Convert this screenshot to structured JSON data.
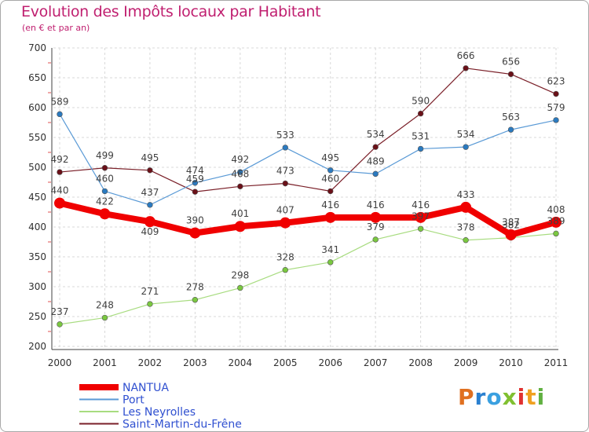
{
  "chart_data": {
    "type": "line",
    "title": "Evolution des Impôts locaux par Habitant",
    "subtitle": "(en € et par an)",
    "categories": [
      "2000",
      "2001",
      "2002",
      "2003",
      "2004",
      "2005",
      "2006",
      "2007",
      "2008",
      "2009",
      "2010",
      "2011"
    ],
    "ylim": [
      200,
      700
    ],
    "yticks": [
      200,
      250,
      300,
      350,
      400,
      450,
      500,
      550,
      600,
      650,
      700
    ],
    "grid": true,
    "legend_position": "bottom-left",
    "series": [
      {
        "name": "Saint-Martin-du-Frêne",
        "color": "#7a1f28",
        "marker": "#6a1018",
        "width": 1.2,
        "values": [
          492,
          499,
          495,
          459,
          468,
          473,
          460,
          534,
          590,
          666,
          656,
          623
        ],
        "labels": [
          "492",
          "499",
          "495",
          "459",
          "468",
          "473",
          "460",
          "534",
          "590",
          "666",
          "656",
          "623"
        ]
      },
      {
        "name": "Port",
        "color": "#5a9ad6",
        "marker": "#2a7ac0",
        "width": 1.2,
        "values": [
          589,
          460,
          437,
          474,
          492,
          533,
          495,
          489,
          531,
          534,
          563,
          579
        ],
        "labels": [
          "589",
          "460",
          "437",
          "474",
          "492",
          "533",
          "495",
          "489",
          "531",
          "534",
          "563",
          "579"
        ]
      },
      {
        "name": "Les Neyrolles",
        "color": "#a8dc80",
        "marker": "#7ac840",
        "width": 1.2,
        "values": [
          237,
          248,
          271,
          278,
          298,
          328,
          341,
          379,
          397,
          378,
          382,
          389
        ],
        "labels": [
          "237",
          "248",
          "271",
          "278",
          "298",
          "328",
          "341",
          "379",
          "397",
          "378",
          "382",
          "389"
        ]
      },
      {
        "name": "NANTUA",
        "color": "#f00000",
        "marker": "#f00000",
        "width": 8,
        "values": [
          440,
          422,
          409,
          390,
          401,
          407,
          416,
          416,
          416,
          433,
          387,
          408
        ],
        "labels": [
          "440",
          "422",
          "409",
          "390",
          "401",
          "407",
          "416",
          "416",
          "416",
          "433",
          "387",
          "408"
        ]
      }
    ],
    "legend": [
      "NANTUA",
      "Port",
      "Les Neyrolles",
      "Saint-Martin-du-Frêne"
    ]
  },
  "logo": {
    "text": "Proxiti"
  }
}
